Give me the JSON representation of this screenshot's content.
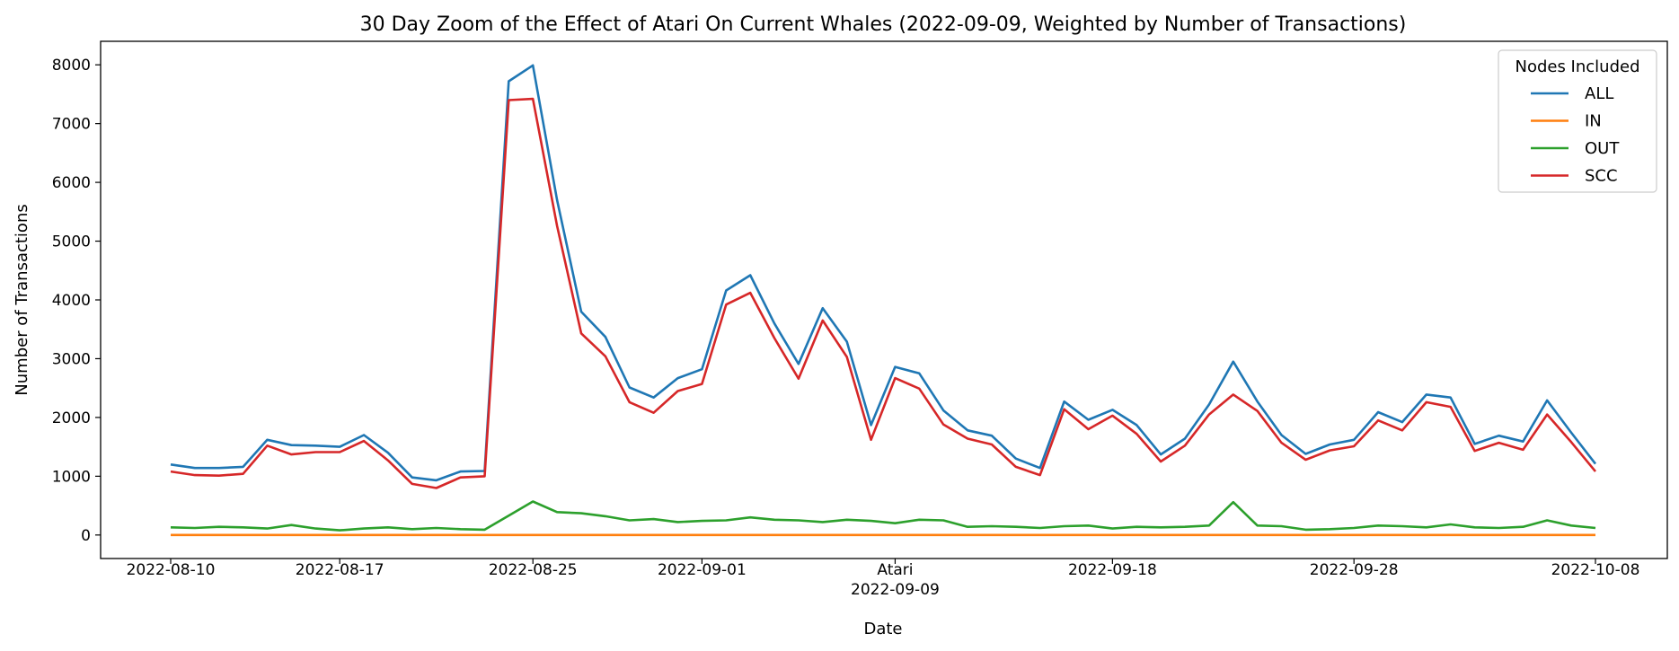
{
  "chart_data": {
    "type": "line",
    "title": "30 Day Zoom of the Effect of Atari On Current Whales (2022-09-09, Weighted by Number of Transactions)",
    "xlabel": "Date",
    "ylabel": "Number of Transactions",
    "x": [
      "2022-08-10",
      "2022-08-11",
      "2022-08-12",
      "2022-08-13",
      "2022-08-14",
      "2022-08-15",
      "2022-08-16",
      "2022-08-17",
      "2022-08-18",
      "2022-08-19",
      "2022-08-20",
      "2022-08-21",
      "2022-08-22",
      "2022-08-23",
      "2022-08-24",
      "2022-08-25",
      "2022-08-26",
      "2022-08-27",
      "2022-08-28",
      "2022-08-29",
      "2022-08-30",
      "2022-08-31",
      "2022-09-01",
      "2022-09-02",
      "2022-09-03",
      "2022-09-04",
      "2022-09-05",
      "2022-09-06",
      "2022-09-07",
      "2022-09-08",
      "2022-09-09",
      "2022-09-10",
      "2022-09-11",
      "2022-09-12",
      "2022-09-13",
      "2022-09-14",
      "2022-09-15",
      "2022-09-16",
      "2022-09-17",
      "2022-09-18",
      "2022-09-19",
      "2022-09-20",
      "2022-09-21",
      "2022-09-22",
      "2022-09-23",
      "2022-09-24",
      "2022-09-25",
      "2022-09-26",
      "2022-09-27",
      "2022-09-28",
      "2022-09-29",
      "2022-09-30",
      "2022-10-01",
      "2022-10-02",
      "2022-10-03",
      "2022-10-04",
      "2022-10-05",
      "2022-10-06",
      "2022-10-07",
      "2022-10-08"
    ],
    "x_ticks": [
      "2022-08-10",
      "2022-08-17",
      "2022-08-25",
      "2022-09-01",
      "2022-09-09",
      "2022-09-18",
      "2022-09-28",
      "2022-10-08"
    ],
    "event": {
      "date": "2022-09-09",
      "label": "Atari"
    },
    "ylim": [
      -400,
      8400
    ],
    "y_ticks": [
      0,
      1000,
      2000,
      3000,
      4000,
      5000,
      6000,
      7000,
      8000
    ],
    "grid": false,
    "legend": {
      "title": "Nodes Included",
      "placement": "top-right"
    },
    "series": [
      {
        "name": "ALL",
        "color": "#1f77b4",
        "values": [
          1200,
          1140,
          1140,
          1160,
          1620,
          1530,
          1520,
          1500,
          1700,
          1400,
          980,
          930,
          1080,
          1090,
          7720,
          7990,
          5700,
          3800,
          3370,
          2510,
          2340,
          2670,
          2820,
          4160,
          4420,
          3600,
          2910,
          3860,
          3290,
          1870,
          2860,
          2750,
          2120,
          1780,
          1690,
          1300,
          1140,
          2270,
          1960,
          2130,
          1870,
          1370,
          1640,
          2220,
          2950,
          2270,
          1700,
          1380,
          1540,
          1620,
          2090,
          1920,
          2390,
          2340,
          1550,
          1690,
          1590,
          2290,
          1740,
          1210
        ]
      },
      {
        "name": "IN",
        "color": "#ff7f0e",
        "values": [
          0,
          0,
          0,
          0,
          0,
          0,
          0,
          0,
          0,
          0,
          0,
          0,
          0,
          0,
          0,
          0,
          0,
          0,
          0,
          0,
          0,
          0,
          0,
          0,
          0,
          0,
          0,
          0,
          0,
          0,
          0,
          0,
          0,
          0,
          0,
          0,
          0,
          0,
          0,
          0,
          0,
          0,
          0,
          0,
          0,
          0,
          0,
          0,
          0,
          0,
          0,
          0,
          0,
          0,
          0,
          0,
          0,
          0,
          0,
          0
        ]
      },
      {
        "name": "OUT",
        "color": "#2ca02c",
        "values": [
          130,
          120,
          140,
          130,
          110,
          170,
          110,
          80,
          110,
          130,
          100,
          120,
          100,
          90,
          330,
          570,
          390,
          370,
          320,
          250,
          270,
          220,
          240,
          250,
          300,
          260,
          250,
          220,
          260,
          240,
          200,
          260,
          250,
          140,
          150,
          140,
          120,
          150,
          160,
          110,
          140,
          130,
          140,
          160,
          560,
          160,
          150,
          90,
          100,
          120,
          160,
          150,
          130,
          180,
          130,
          120,
          140,
          250,
          160,
          120
        ]
      },
      {
        "name": "SCC",
        "color": "#d62728",
        "values": [
          1080,
          1020,
          1010,
          1040,
          1520,
          1370,
          1410,
          1410,
          1600,
          1270,
          870,
          800,
          980,
          1000,
          7400,
          7420,
          5260,
          3430,
          3040,
          2260,
          2080,
          2450,
          2570,
          3920,
          4120,
          3350,
          2660,
          3650,
          3030,
          1620,
          2670,
          2490,
          1880,
          1640,
          1540,
          1160,
          1020,
          2140,
          1800,
          2030,
          1720,
          1250,
          1520,
          2050,
          2390,
          2110,
          1570,
          1280,
          1440,
          1510,
          1950,
          1780,
          2260,
          2180,
          1430,
          1570,
          1450,
          2050,
          1580,
          1080
        ]
      }
    ]
  }
}
